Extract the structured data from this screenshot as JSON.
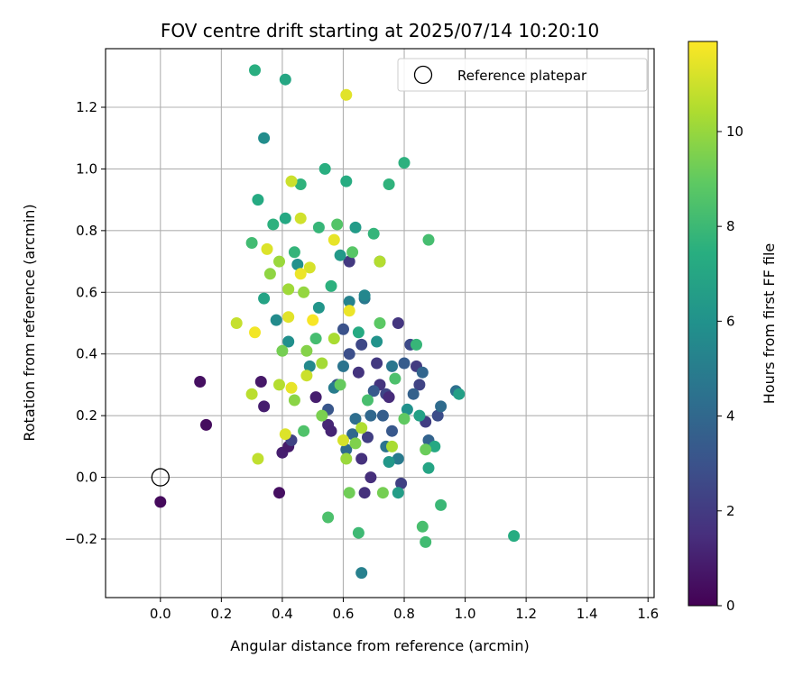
{
  "chart_data": {
    "type": "scatter",
    "title": "FOV centre drift starting at 2025/07/14 10:20:10",
    "xlabel": "Angular distance from reference (arcmin)",
    "ylabel": "Rotation from reference (arcmin)",
    "xlim": [
      -0.18,
      1.62
    ],
    "ylim": [
      -0.39,
      1.39
    ],
    "xticks": [
      0.0,
      0.2,
      0.4,
      0.6,
      0.8,
      1.0,
      1.2,
      1.4,
      1.6
    ],
    "xtick_labels": [
      "0.0",
      "0.2",
      "0.4",
      "0.6",
      "0.8",
      "1.0",
      "1.2",
      "1.4",
      "1.6"
    ],
    "yticks": [
      -0.2,
      0.0,
      0.2,
      0.4,
      0.6,
      0.8,
      1.0,
      1.2
    ],
    "ytick_labels": [
      "−0.2",
      "0.0",
      "0.2",
      "0.4",
      "0.6",
      "0.8",
      "1.0",
      "1.2"
    ],
    "grid": true,
    "colormap": "viridis",
    "colorbar": {
      "label": "Hours from first FF file",
      "range": [
        0,
        11.9
      ],
      "ticks": [
        0,
        2,
        4,
        6,
        8,
        10
      ],
      "tick_labels": [
        "0",
        "2",
        "4",
        "6",
        "8",
        "10"
      ]
    },
    "legend": {
      "placement": "upper right",
      "entries": [
        {
          "label": "Reference platepar",
          "marker": "open-circle"
        }
      ]
    },
    "reference": {
      "x": 0.0,
      "y": 0.0
    },
    "points": [
      [
        0.0,
        -0.08,
        0.3
      ],
      [
        0.13,
        0.31,
        0.5
      ],
      [
        0.15,
        0.17,
        0.4
      ],
      [
        0.33,
        0.31,
        0.8
      ],
      [
        0.34,
        0.23,
        1.0
      ],
      [
        0.39,
        -0.05,
        0.5
      ],
      [
        0.4,
        0.08,
        1.0
      ],
      [
        0.42,
        0.1,
        0.9
      ],
      [
        0.43,
        0.12,
        2.4
      ],
      [
        0.51,
        0.26,
        1.0
      ],
      [
        0.55,
        0.17,
        1.3
      ],
      [
        0.56,
        0.15,
        1.2
      ],
      [
        0.62,
        0.7,
        2.0
      ],
      [
        0.65,
        0.34,
        1.8
      ],
      [
        0.66,
        0.06,
        1.7
      ],
      [
        0.67,
        -0.05,
        1.7
      ],
      [
        0.68,
        0.13,
        2.2
      ],
      [
        0.69,
        0.0,
        1.6
      ],
      [
        0.72,
        0.3,
        1.8
      ],
      [
        0.74,
        0.27,
        2.5
      ],
      [
        0.78,
        0.5,
        1.9
      ],
      [
        0.79,
        -0.02,
        2.3
      ],
      [
        0.82,
        0.43,
        2.7
      ],
      [
        0.84,
        0.36,
        2.1
      ],
      [
        0.85,
        0.3,
        2.4
      ],
      [
        0.87,
        0.18,
        2.2
      ],
      [
        0.91,
        0.2,
        2.8
      ],
      [
        0.75,
        0.26,
        1.5
      ],
      [
        0.71,
        0.37,
        2.0
      ],
      [
        0.66,
        0.43,
        2.6
      ],
      [
        0.62,
        0.4,
        2.9
      ],
      [
        0.6,
        0.48,
        3.0
      ],
      [
        0.58,
        0.3,
        3.1
      ],
      [
        0.55,
        0.22,
        3.2
      ],
      [
        0.7,
        0.28,
        3.4
      ],
      [
        0.73,
        0.2,
        3.6
      ],
      [
        0.76,
        0.15,
        3.3
      ],
      [
        0.8,
        0.37,
        3.5
      ],
      [
        0.83,
        0.27,
        3.7
      ],
      [
        0.86,
        0.34,
        3.9
      ],
      [
        0.88,
        0.12,
        3.8
      ],
      [
        0.92,
        0.23,
        4.2
      ],
      [
        0.97,
        0.28,
        4.4
      ],
      [
        0.64,
        0.19,
        4.3
      ],
      [
        0.6,
        0.36,
        4.6
      ],
      [
        0.67,
        0.58,
        4.8
      ],
      [
        0.72,
        0.7,
        4.5
      ],
      [
        0.63,
        0.14,
        4.1
      ],
      [
        0.69,
        0.2,
        4.0
      ],
      [
        0.76,
        0.36,
        4.7
      ],
      [
        0.78,
        0.06,
        4.9
      ],
      [
        0.74,
        0.1,
        4.6
      ],
      [
        0.61,
        0.09,
        4.2
      ],
      [
        0.66,
        -0.31,
        5.2
      ],
      [
        0.57,
        0.29,
        5.0
      ],
      [
        0.62,
        0.57,
        5.3
      ],
      [
        0.67,
        0.59,
        5.5
      ],
      [
        0.49,
        0.36,
        5.6
      ],
      [
        0.34,
        1.1,
        5.8
      ],
      [
        0.38,
        0.51,
        5.7
      ],
      [
        0.42,
        0.44,
        5.9
      ],
      [
        0.45,
        0.69,
        6.0
      ],
      [
        0.52,
        0.55,
        6.2
      ],
      [
        0.59,
        0.72,
        6.4
      ],
      [
        0.64,
        0.81,
        6.5
      ],
      [
        0.71,
        0.44,
        6.1
      ],
      [
        0.75,
        0.05,
        6.3
      ],
      [
        0.78,
        -0.05,
        6.6
      ],
      [
        0.81,
        0.22,
        6.0
      ],
      [
        0.85,
        0.2,
        6.8
      ],
      [
        0.88,
        0.03,
        7.0
      ],
      [
        0.9,
        0.1,
        7.2
      ],
      [
        0.98,
        0.27,
        6.7
      ],
      [
        1.16,
        -0.19,
        7.4
      ],
      [
        0.31,
        1.32,
        7.5
      ],
      [
        0.41,
        1.29,
        7.1
      ],
      [
        0.32,
        0.9,
        7.3
      ],
      [
        0.34,
        0.58,
        6.9
      ],
      [
        0.37,
        0.82,
        7.6
      ],
      [
        0.41,
        0.84,
        7.2
      ],
      [
        0.44,
        0.73,
        7.8
      ],
      [
        0.46,
        0.95,
        7.7
      ],
      [
        0.52,
        0.81,
        7.9
      ],
      [
        0.54,
        1.0,
        7.5
      ],
      [
        0.56,
        0.62,
        7.6
      ],
      [
        0.61,
        0.96,
        7.4
      ],
      [
        0.65,
        0.47,
        7.3
      ],
      [
        0.7,
        0.79,
        7.8
      ],
      [
        0.75,
        0.95,
        7.7
      ],
      [
        0.8,
        1.02,
        7.6
      ],
      [
        0.84,
        0.43,
        7.9
      ],
      [
        0.88,
        0.77,
        8.3
      ],
      [
        0.92,
        -0.09,
        8.0
      ],
      [
        0.87,
        -0.21,
        8.2
      ],
      [
        0.86,
        -0.16,
        8.4
      ],
      [
        0.65,
        -0.18,
        8.1
      ],
      [
        0.55,
        -0.13,
        8.5
      ],
      [
        0.3,
        0.76,
        8.2
      ],
      [
        0.47,
        0.15,
        8.6
      ],
      [
        0.51,
        0.45,
        8.3
      ],
      [
        0.58,
        0.82,
        8.7
      ],
      [
        0.63,
        0.73,
        8.8
      ],
      [
        0.68,
        0.25,
        8.4
      ],
      [
        0.72,
        0.5,
        8.9
      ],
      [
        0.77,
        0.32,
        8.5
      ],
      [
        0.8,
        0.19,
        9.0
      ],
      [
        0.87,
        0.09,
        9.2
      ],
      [
        0.73,
        -0.05,
        9.4
      ],
      [
        0.62,
        -0.05,
        9.3
      ],
      [
        0.64,
        0.11,
        9.6
      ],
      [
        0.59,
        0.3,
        9.1
      ],
      [
        0.53,
        0.2,
        9.5
      ],
      [
        0.48,
        0.41,
        9.7
      ],
      [
        0.44,
        0.25,
        9.8
      ],
      [
        0.4,
        0.41,
        9.4
      ],
      [
        0.36,
        0.66,
        9.9
      ],
      [
        0.39,
        0.7,
        10.1
      ],
      [
        0.42,
        0.61,
        10.2
      ],
      [
        0.47,
        0.6,
        10.0
      ],
      [
        0.53,
        0.37,
        10.3
      ],
      [
        0.57,
        0.45,
        10.4
      ],
      [
        0.61,
        0.06,
        10.1
      ],
      [
        0.66,
        0.16,
        10.5
      ],
      [
        0.72,
        0.7,
        10.6
      ],
      [
        0.76,
        0.1,
        10.4
      ],
      [
        0.3,
        0.27,
        10.7
      ],
      [
        0.32,
        0.06,
        10.8
      ],
      [
        0.25,
        0.5,
        10.9
      ],
      [
        0.39,
        0.3,
        10.6
      ],
      [
        0.43,
        0.96,
        11.0
      ],
      [
        0.46,
        0.84,
        11.1
      ],
      [
        0.49,
        0.68,
        11.2
      ],
      [
        0.35,
        0.74,
        11.3
      ],
      [
        0.57,
        0.77,
        11.5
      ],
      [
        0.61,
        1.24,
        11.4
      ],
      [
        0.62,
        0.54,
        11.6
      ],
      [
        0.41,
        0.14,
        11.3
      ],
      [
        0.43,
        0.29,
        11.5
      ],
      [
        0.31,
        0.47,
        11.7
      ],
      [
        0.5,
        0.51,
        11.8
      ],
      [
        0.6,
        0.12,
        11.2
      ],
      [
        0.46,
        0.66,
        11.6
      ],
      [
        0.42,
        0.52,
        11.4
      ],
      [
        0.48,
        0.33,
        11.0
      ]
    ]
  }
}
